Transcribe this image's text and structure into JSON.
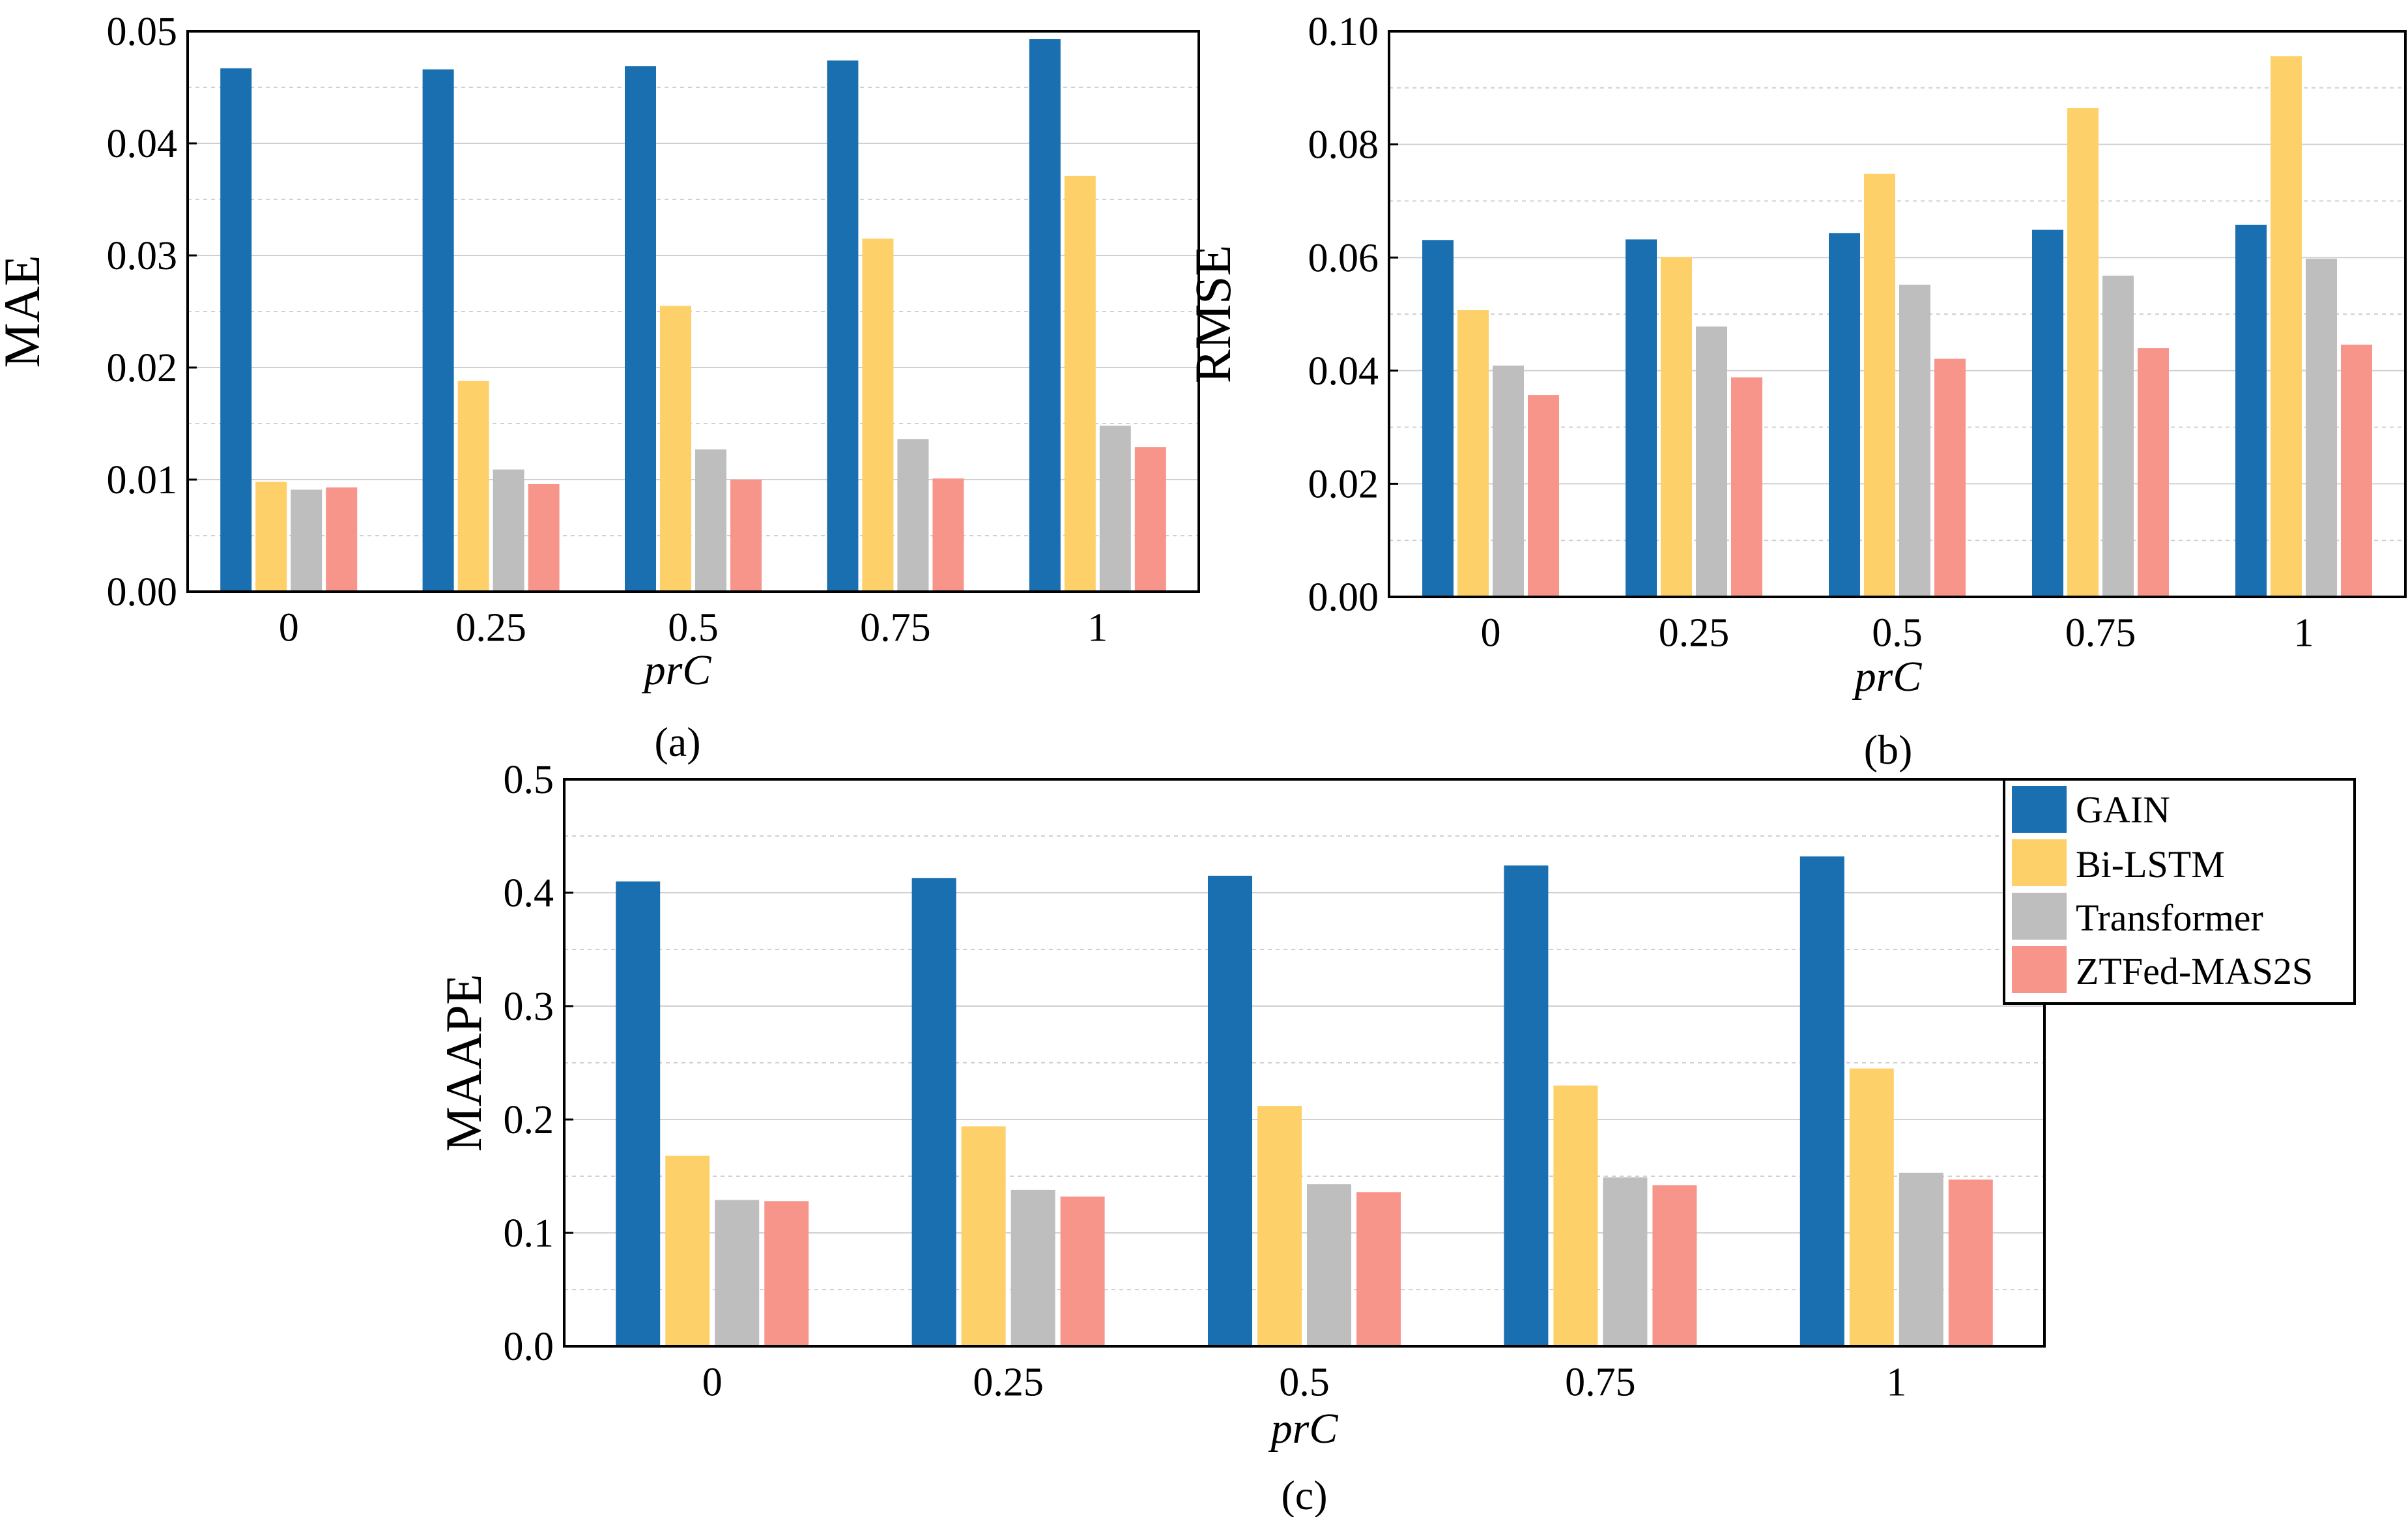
{
  "colors": {
    "GAIN": "#1a6fb0",
    "Bi-LSTM": "#fdd06a",
    "Transformer": "#bebebe",
    "ZTFed-MAS2S": "#f8958a",
    "grid": "#d0d0d0",
    "axis": "#000000"
  },
  "legend": {
    "placement": "top-right of panel (c)",
    "entries": [
      "GAIN",
      "Bi-LSTM",
      "Transformer",
      "ZTFed-MAS2S"
    ]
  },
  "chart_data": [
    {
      "type": "bar",
      "panel_label": "(a)",
      "xlabel": "prC",
      "ylabel": "MAE",
      "categories": [
        "0",
        "0.25",
        "0.5",
        "0.75",
        "1"
      ],
      "ylim": [
        0,
        0.05
      ],
      "yticks": [
        "0.00",
        "0.01",
        "0.02",
        "0.03",
        "0.04",
        "0.05"
      ],
      "grid": true,
      "series": [
        {
          "name": "GAIN",
          "values": [
            0.0467,
            0.0466,
            0.0469,
            0.0474,
            0.0493
          ]
        },
        {
          "name": "Bi-LSTM",
          "values": [
            0.0098,
            0.0188,
            0.0255,
            0.0315,
            0.0371
          ]
        },
        {
          "name": "Transformer",
          "values": [
            0.0091,
            0.0109,
            0.0127,
            0.0136,
            0.0148
          ]
        },
        {
          "name": "ZTFed-MAS2S",
          "values": [
            0.0093,
            0.0096,
            0.01,
            0.0101,
            0.0129
          ]
        }
      ]
    },
    {
      "type": "bar",
      "panel_label": "(b)",
      "xlabel": "prC",
      "ylabel": "RMSE",
      "categories": [
        "0",
        "0.25",
        "0.5",
        "0.75",
        "1"
      ],
      "ylim": [
        0,
        0.1
      ],
      "yticks": [
        "0.00",
        "0.02",
        "0.04",
        "0.06",
        "0.08",
        "0.10"
      ],
      "grid": true,
      "series": [
        {
          "name": "GAIN",
          "values": [
            0.0631,
            0.0632,
            0.0643,
            0.0649,
            0.0658
          ]
        },
        {
          "name": "Bi-LSTM",
          "values": [
            0.0507,
            0.0601,
            0.0748,
            0.0864,
            0.0956
          ]
        },
        {
          "name": "Transformer",
          "values": [
            0.0409,
            0.0478,
            0.0552,
            0.0568,
            0.0598
          ]
        },
        {
          "name": "ZTFed-MAS2S",
          "values": [
            0.0357,
            0.0388,
            0.0421,
            0.044,
            0.0446
          ]
        }
      ]
    },
    {
      "type": "bar",
      "panel_label": "(c)",
      "xlabel": "prC",
      "ylabel": "MAAPE",
      "categories": [
        "0",
        "0.25",
        "0.5",
        "0.75",
        "1"
      ],
      "ylim": [
        0,
        0.5
      ],
      "yticks": [
        "0.0",
        "0.1",
        "0.2",
        "0.3",
        "0.4",
        "0.5"
      ],
      "grid": true,
      "series": [
        {
          "name": "GAIN",
          "values": [
            0.41,
            0.413,
            0.415,
            0.424,
            0.432
          ]
        },
        {
          "name": "Bi-LSTM",
          "values": [
            0.168,
            0.194,
            0.212,
            0.23,
            0.245
          ]
        },
        {
          "name": "Transformer",
          "values": [
            0.129,
            0.138,
            0.143,
            0.149,
            0.153
          ]
        },
        {
          "name": "ZTFed-MAS2S",
          "values": [
            0.128,
            0.132,
            0.136,
            0.142,
            0.147
          ]
        }
      ]
    }
  ]
}
